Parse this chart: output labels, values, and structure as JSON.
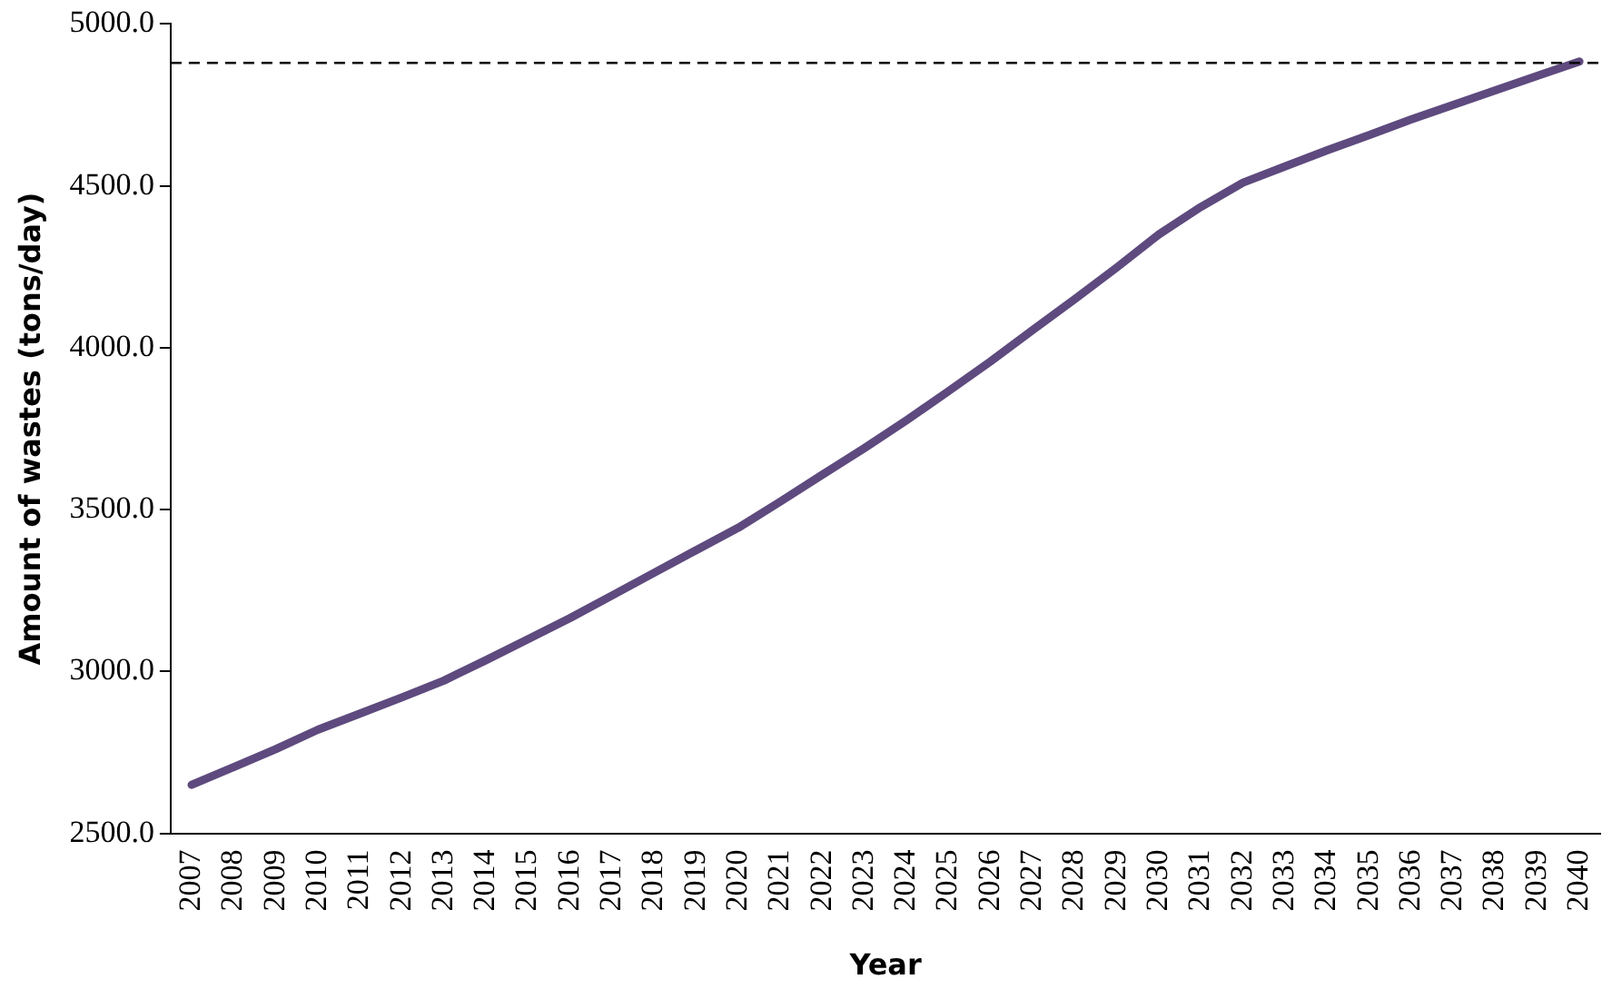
{
  "chart_data": {
    "type": "line",
    "xlabel": "Year",
    "ylabel": "Amount of wastes (tons/day)",
    "categories": [
      "2007",
      "2008",
      "2009",
      "2010",
      "2011",
      "2012",
      "2013",
      "2014",
      "2015",
      "2016",
      "2017",
      "2018",
      "2019",
      "2020",
      "2021",
      "2022",
      "2023",
      "2024",
      "2025",
      "2026",
      "2027",
      "2028",
      "2029",
      "2030",
      "2031",
      "2032",
      "2033",
      "2034",
      "2035",
      "2036",
      "2037",
      "2038",
      "2039",
      "2040"
    ],
    "series": [
      {
        "color": "#5e4a7e",
        "values": [
          2650,
          2705,
          2760,
          2820,
          2870,
          2920,
          2972,
          3035,
          3100,
          3165,
          3235,
          3305,
          3375,
          3444,
          3525,
          3608,
          3690,
          3776,
          3866,
          3958,
          4055,
          4150,
          4248,
          4350,
          4435,
          4510,
          4560,
          4610,
          4657,
          4705,
          4750,
          4795,
          4840,
          4884
        ]
      }
    ],
    "ylim": [
      2500,
      5000
    ],
    "yticks": [
      {
        "value": 2500,
        "label": "2500.0"
      },
      {
        "value": 3000,
        "label": "3000.0"
      },
      {
        "value": 3500,
        "label": "3500.0"
      },
      {
        "value": 4000,
        "label": "4000.0"
      },
      {
        "value": 4500,
        "label": "4500.0"
      },
      {
        "value": 5000,
        "label": "5000.0"
      }
    ],
    "ref_lines": [
      {
        "axis": "y",
        "value": 4880,
        "color": "#000000",
        "line_style": "dashed"
      }
    ],
    "grid": false,
    "legend": false,
    "marker": "none",
    "line_style": "solid"
  }
}
